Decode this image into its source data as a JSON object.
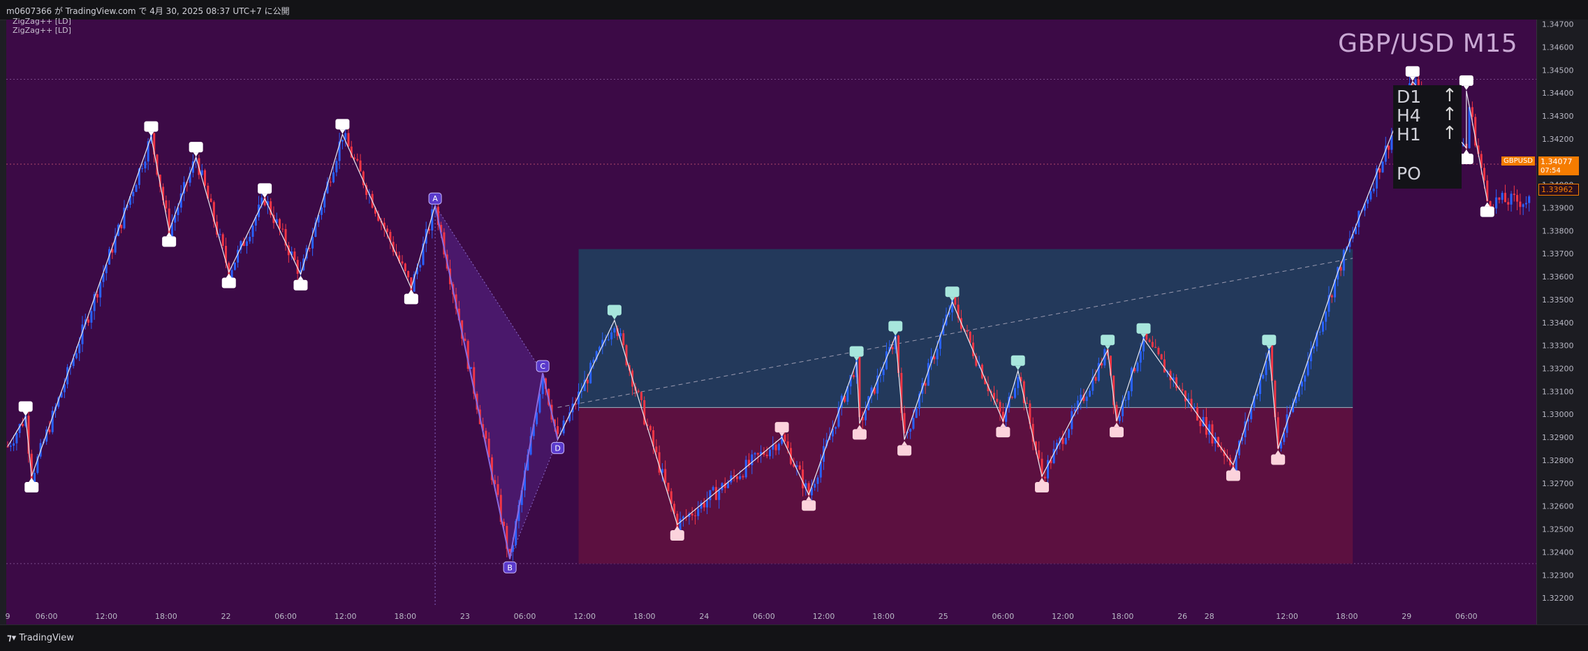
{
  "header": {
    "publish_line": "m0607366 が TradingView.com で 4月 30, 2025 08:37 UTC+7 に公開"
  },
  "indicators": [
    "ZigZag++ [LD]",
    "ZigZag++ [LD]"
  ],
  "symbol_title": "GBP/USD M15",
  "mtf_panel": {
    "rows": [
      {
        "tf": "D1",
        "arrow": "↑"
      },
      {
        "tf": "H4",
        "arrow": "↑"
      },
      {
        "tf": "H1",
        "arrow": "↑"
      }
    ],
    "footer": "PO"
  },
  "price_tags": {
    "symbol": "GBPUSD",
    "last_price": "1.34077",
    "countdown": "07:54",
    "other_price": "1.33962"
  },
  "footer": {
    "brand": "TradingView"
  },
  "colors": {
    "background": "#3c0a46",
    "bull_candle": "#2962ff",
    "bear_candle": "#f23645",
    "upper_box": "#23395b",
    "lower_box": "#5c1040",
    "pattern_fill": "#5a2a9a",
    "accent_tag": "#f57c00"
  },
  "chart_data": {
    "type": "candlestick",
    "symbol": "GBP/USD",
    "timeframe": "M15",
    "y_ticks": [
      "1.34700",
      "1.34600",
      "1.34500",
      "1.34400",
      "1.34300",
      "1.34200",
      "1.34100",
      "1.34000",
      "1.33900",
      "1.33800",
      "1.33700",
      "1.33600",
      "1.33500",
      "1.33400",
      "1.33300",
      "1.33200",
      "1.33100",
      "1.33000",
      "1.32900",
      "1.32800",
      "1.32700",
      "1.32600",
      "1.32500",
      "1.32400",
      "1.32300",
      "1.32200"
    ],
    "ylim": [
      1.3217,
      1.3472
    ],
    "x_ticks": [
      {
        "label": "9",
        "i": 0
      },
      {
        "label": "06:00",
        "i": 13
      },
      {
        "label": "12:00",
        "i": 33
      },
      {
        "label": "18:00",
        "i": 53
      },
      {
        "label": "22",
        "i": 73
      },
      {
        "label": "06:00",
        "i": 93
      },
      {
        "label": "12:00",
        "i": 113
      },
      {
        "label": "18:00",
        "i": 133
      },
      {
        "label": "23",
        "i": 153
      },
      {
        "label": "06:00",
        "i": 173
      },
      {
        "label": "12:00",
        "i": 193
      },
      {
        "label": "18:00",
        "i": 213
      },
      {
        "label": "24",
        "i": 233
      },
      {
        "label": "06:00",
        "i": 253
      },
      {
        "label": "12:00",
        "i": 273
      },
      {
        "label": "18:00",
        "i": 293
      },
      {
        "label": "25",
        "i": 313
      },
      {
        "label": "06:00",
        "i": 333
      },
      {
        "label": "12:00",
        "i": 353
      },
      {
        "label": "18:00",
        "i": 373
      },
      {
        "label": "26",
        "i": 393
      },
      {
        "label": "28",
        "i": 402
      },
      {
        "label": "12:00",
        "i": 428
      },
      {
        "label": "18:00",
        "i": 448
      },
      {
        "label": "29",
        "i": 468
      },
      {
        "label": "06:00",
        "i": 488
      }
    ],
    "n_bars": 510,
    "zigzag": [
      {
        "i": 0,
        "p": 1.3286
      },
      {
        "i": 6,
        "p": 1.3299
      },
      {
        "i": 8,
        "p": 1.3273
      },
      {
        "i": 48,
        "p": 1.3421
      },
      {
        "i": 54,
        "p": 1.338
      },
      {
        "i": 63,
        "p": 1.3412
      },
      {
        "i": 74,
        "p": 1.3362
      },
      {
        "i": 86,
        "p": 1.3394
      },
      {
        "i": 98,
        "p": 1.3361
      },
      {
        "i": 112,
        "p": 1.3422
      },
      {
        "i": 135,
        "p": 1.3355
      },
      {
        "i": 143,
        "p": 1.3391
      },
      {
        "i": 168,
        "p": 1.3237
      },
      {
        "i": 179,
        "p": 1.3318
      },
      {
        "i": 184,
        "p": 1.3289
      },
      {
        "i": 203,
        "p": 1.3341
      },
      {
        "i": 224,
        "p": 1.3252
      },
      {
        "i": 259,
        "p": 1.329
      },
      {
        "i": 268,
        "p": 1.3265
      },
      {
        "i": 284,
        "p": 1.3323
      },
      {
        "i": 285,
        "p": 1.3296
      },
      {
        "i": 297,
        "p": 1.3334
      },
      {
        "i": 300,
        "p": 1.3289
      },
      {
        "i": 316,
        "p": 1.3349
      },
      {
        "i": 333,
        "p": 1.3297
      },
      {
        "i": 338,
        "p": 1.3319
      },
      {
        "i": 346,
        "p": 1.3273
      },
      {
        "i": 368,
        "p": 1.3328
      },
      {
        "i": 371,
        "p": 1.3297
      },
      {
        "i": 380,
        "p": 1.3333
      },
      {
        "i": 410,
        "p": 1.3278
      },
      {
        "i": 422,
        "p": 1.3328
      },
      {
        "i": 425,
        "p": 1.3285
      },
      {
        "i": 445,
        "p": 1.3362
      },
      {
        "i": 470,
        "p": 1.3445
      },
      {
        "i": 488,
        "p": 1.3416
      },
      {
        "i": 488,
        "p": 1.3441
      },
      {
        "i": 495,
        "p": 1.3393
      }
    ],
    "pivot_labels": [
      {
        "i": 6,
        "p": 1.3299,
        "pos": "high",
        "style": "white"
      },
      {
        "i": 8,
        "p": 1.3273,
        "pos": "low",
        "style": "white"
      },
      {
        "i": 48,
        "p": 1.3421,
        "pos": "high",
        "style": "white"
      },
      {
        "i": 54,
        "p": 1.338,
        "pos": "low",
        "style": "white"
      },
      {
        "i": 63,
        "p": 1.3412,
        "pos": "high",
        "style": "white"
      },
      {
        "i": 74,
        "p": 1.3362,
        "pos": "low",
        "style": "white"
      },
      {
        "i": 86,
        "p": 1.3394,
        "pos": "high",
        "style": "white"
      },
      {
        "i": 98,
        "p": 1.3361,
        "pos": "low",
        "style": "white"
      },
      {
        "i": 112,
        "p": 1.3422,
        "pos": "high",
        "style": "white"
      },
      {
        "i": 135,
        "p": 1.3355,
        "pos": "low",
        "style": "white"
      },
      {
        "i": 203,
        "p": 1.3341,
        "pos": "high",
        "style": "teal"
      },
      {
        "i": 224,
        "p": 1.3252,
        "pos": "low",
        "style": "pink"
      },
      {
        "i": 259,
        "p": 1.329,
        "pos": "high",
        "style": "pink"
      },
      {
        "i": 268,
        "p": 1.3265,
        "pos": "low",
        "style": "pink"
      },
      {
        "i": 284,
        "p": 1.3323,
        "pos": "high",
        "style": "teal"
      },
      {
        "i": 285,
        "p": 1.3296,
        "pos": "low",
        "style": "pink"
      },
      {
        "i": 297,
        "p": 1.3334,
        "pos": "high",
        "style": "teal"
      },
      {
        "i": 300,
        "p": 1.3289,
        "pos": "low",
        "style": "pink"
      },
      {
        "i": 316,
        "p": 1.3349,
        "pos": "high",
        "style": "teal"
      },
      {
        "i": 333,
        "p": 1.3297,
        "pos": "low",
        "style": "pink"
      },
      {
        "i": 338,
        "p": 1.3319,
        "pos": "high",
        "style": "teal"
      },
      {
        "i": 346,
        "p": 1.3273,
        "pos": "low",
        "style": "pink"
      },
      {
        "i": 368,
        "p": 1.3328,
        "pos": "high",
        "style": "teal"
      },
      {
        "i": 371,
        "p": 1.3297,
        "pos": "low",
        "style": "pink"
      },
      {
        "i": 380,
        "p": 1.3333,
        "pos": "high",
        "style": "teal"
      },
      {
        "i": 410,
        "p": 1.3278,
        "pos": "low",
        "style": "pink"
      },
      {
        "i": 422,
        "p": 1.3328,
        "pos": "high",
        "style": "teal"
      },
      {
        "i": 425,
        "p": 1.3285,
        "pos": "low",
        "style": "pink"
      },
      {
        "i": 470,
        "p": 1.3445,
        "pos": "high",
        "style": "white"
      },
      {
        "i": 488,
        "p": 1.3416,
        "pos": "low",
        "style": "white"
      },
      {
        "i": 488,
        "p": 1.3441,
        "pos": "high",
        "style": "white"
      },
      {
        "i": 495,
        "p": 1.3393,
        "pos": "low",
        "style": "white"
      }
    ],
    "abcd": [
      {
        "label": "A",
        "i": 143,
        "p": 1.3391
      },
      {
        "label": "B",
        "i": 168,
        "p": 1.3237
      },
      {
        "label": "C",
        "i": 179,
        "p": 1.3318
      },
      {
        "label": "D",
        "i": 184,
        "p": 1.3289
      }
    ],
    "box": {
      "i_start": 191,
      "i_end": 450,
      "p_top": 1.3372,
      "p_mid": 1.3303,
      "p_bottom": 1.3235
    },
    "trend_line": {
      "i1": 184,
      "p1": 1.3303,
      "i2": 450,
      "p2": 1.3368
    },
    "horizontal_levels": [
      1.3446,
      1.3409,
      1.3235
    ],
    "last_price": 1.34077,
    "other_price": 1.33962
  }
}
